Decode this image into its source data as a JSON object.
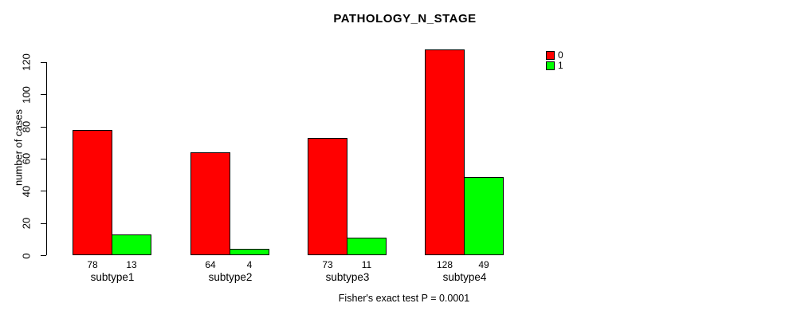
{
  "chart_data": {
    "type": "bar",
    "title": "PATHOLOGY_N_STAGE",
    "ylabel": "number of cases",
    "xlabel": "",
    "categories": [
      "subtype1",
      "subtype2",
      "subtype3",
      "subtype4"
    ],
    "series": [
      {
        "name": "0",
        "color": "#FF0000",
        "values": [
          78,
          64,
          73,
          128
        ]
      },
      {
        "name": "1",
        "color": "#00FF00",
        "values": [
          13,
          4,
          11,
          49
        ]
      }
    ],
    "bar_value_labels": [
      [
        "78",
        "13"
      ],
      [
        "64",
        "4"
      ],
      [
        "73",
        "11"
      ],
      [
        "128",
        "49"
      ]
    ],
    "yticks": [
      0,
      20,
      40,
      60,
      80,
      100,
      120
    ],
    "ylim": [
      0,
      130
    ],
    "grid": false,
    "legend_position": "top-right",
    "legend_entries": [
      {
        "label": "0",
        "color": "#FF0000"
      },
      {
        "label": "1",
        "color": "#00FF00"
      }
    ],
    "axis_color": "#000000",
    "caption": "Fisher's exact test P = 0.0001"
  }
}
